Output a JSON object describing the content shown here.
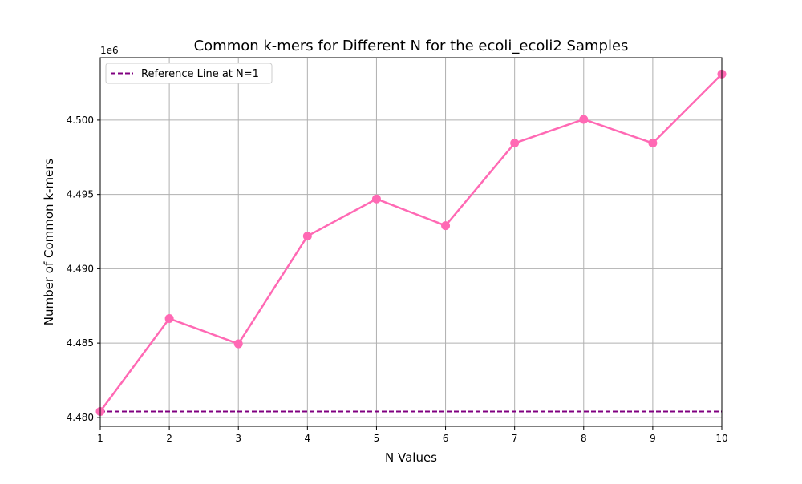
{
  "chart_data": {
    "type": "line",
    "title": "Common k-mers for Different N for the ecoli_ecoli2 Samples",
    "xlabel": "N Values",
    "ylabel": "Number of Common k-mers",
    "y_offset_label": "1e6",
    "x": [
      1,
      2,
      3,
      4,
      5,
      6,
      7,
      8,
      9,
      10
    ],
    "series": [
      {
        "values": [
          4480400,
          4486650,
          4484950,
          4492200,
          4494700,
          4492900,
          4498450,
          4500050,
          4498450,
          4503100
        ],
        "color": "#ff69b4",
        "marker": "circle"
      }
    ],
    "reference_line": {
      "name": "Reference Line at N=1",
      "value": 4480400,
      "color": "#800080",
      "style": "dashed"
    },
    "xlim": [
      1,
      10
    ],
    "ylim": [
      4479400,
      4504200
    ],
    "x_ticks": [
      "1",
      "2",
      "3",
      "4",
      "5",
      "6",
      "7",
      "8",
      "9",
      "10"
    ],
    "y_ticks": [
      {
        "value": 4480000,
        "label": "4.480"
      },
      {
        "value": 4485000,
        "label": "4.485"
      },
      {
        "value": 4490000,
        "label": "4.490"
      },
      {
        "value": 4495000,
        "label": "4.495"
      },
      {
        "value": 4500000,
        "label": "4.500"
      }
    ],
    "grid": true,
    "legend_position": "top-left"
  }
}
